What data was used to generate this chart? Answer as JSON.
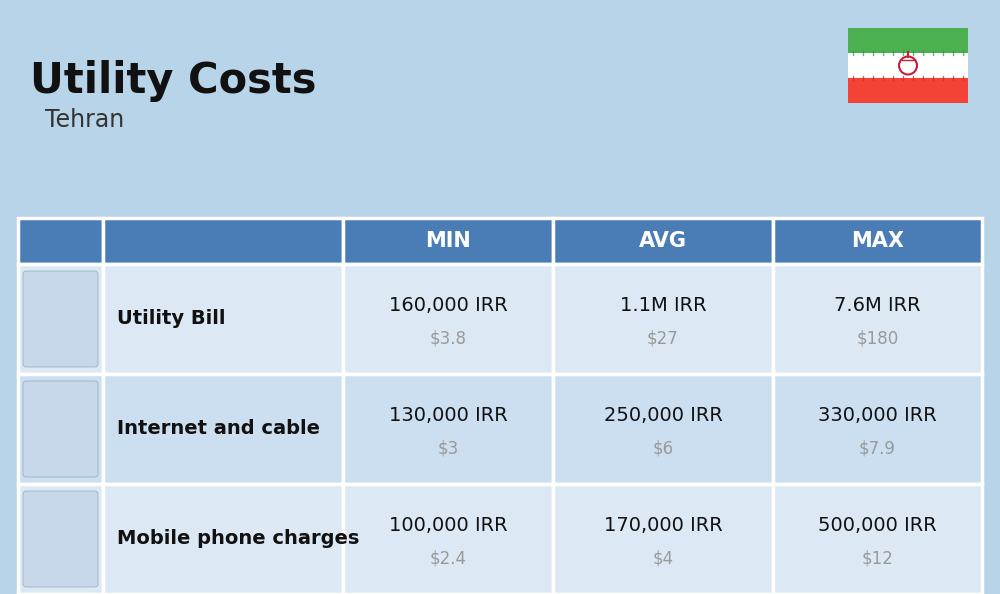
{
  "title": "Utility Costs",
  "subtitle": "Tehran",
  "background_color": "#b8d4e8",
  "header_bg_color": "#4a7db5",
  "header_text_color": "#ffffff",
  "row_bg_color_odd": "#dce9f5",
  "row_bg_color_even": "#ccdff0",
  "border_color": "#ffffff",
  "headers": [
    "MIN",
    "AVG",
    "MAX"
  ],
  "rows": [
    {
      "label": "Utility Bill",
      "min_irr": "160,000 IRR",
      "min_usd": "$3.8",
      "avg_irr": "1.1M IRR",
      "avg_usd": "$27",
      "max_irr": "7.6M IRR",
      "max_usd": "$180"
    },
    {
      "label": "Internet and cable",
      "min_irr": "130,000 IRR",
      "min_usd": "$3",
      "avg_irr": "250,000 IRR",
      "avg_usd": "$6",
      "max_irr": "330,000 IRR",
      "max_usd": "$7.9"
    },
    {
      "label": "Mobile phone charges",
      "min_irr": "100,000 IRR",
      "min_usd": "$2.4",
      "avg_irr": "170,000 IRR",
      "avg_usd": "$4",
      "max_irr": "500,000 IRR",
      "max_usd": "$12"
    }
  ],
  "title_fontsize": 30,
  "subtitle_fontsize": 17,
  "header_fontsize": 15,
  "label_fontsize": 14,
  "value_fontsize": 14,
  "usd_fontsize": 12,
  "usd_color": "#999999",
  "label_color": "#111111",
  "value_color": "#111111",
  "flag_green": "#4caf50",
  "flag_white": "#ffffff",
  "flag_red": "#f44336",
  "flag_emblem_color": "#c41e3a"
}
